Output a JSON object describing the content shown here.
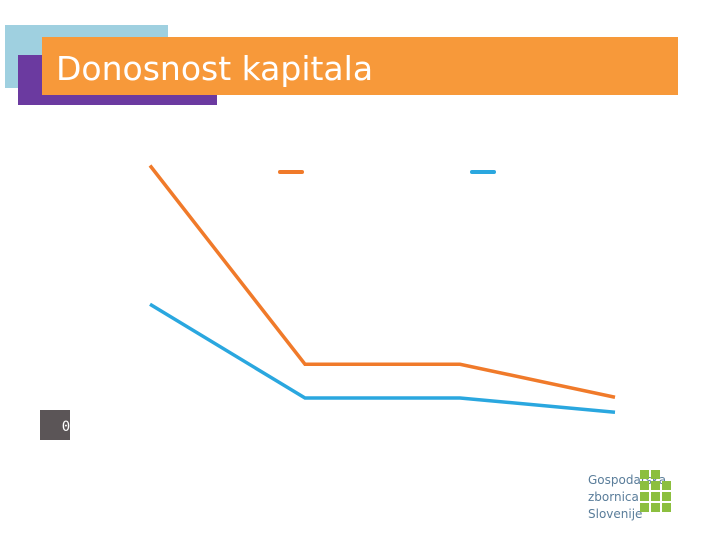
{
  "header": {
    "title": "Donosnost kapitala"
  },
  "chart_data": {
    "type": "line",
    "categories": [
      null,
      null,
      null,
      null
    ],
    "series": [
      {
        "color": "#f07a2a",
        "values": [
          3.5,
          0.85,
          0.85,
          0.41
        ]
      },
      {
        "color": "#2aa7df",
        "values": [
          1.65,
          0.4,
          0.4,
          0.21
        ]
      }
    ],
    "ylim": [
      0,
      4
    ],
    "yticks": [
      0
    ]
  },
  "logo": {
    "lines": [
      "Gospodarska",
      "zbornica",
      "Slovenije"
    ]
  }
}
